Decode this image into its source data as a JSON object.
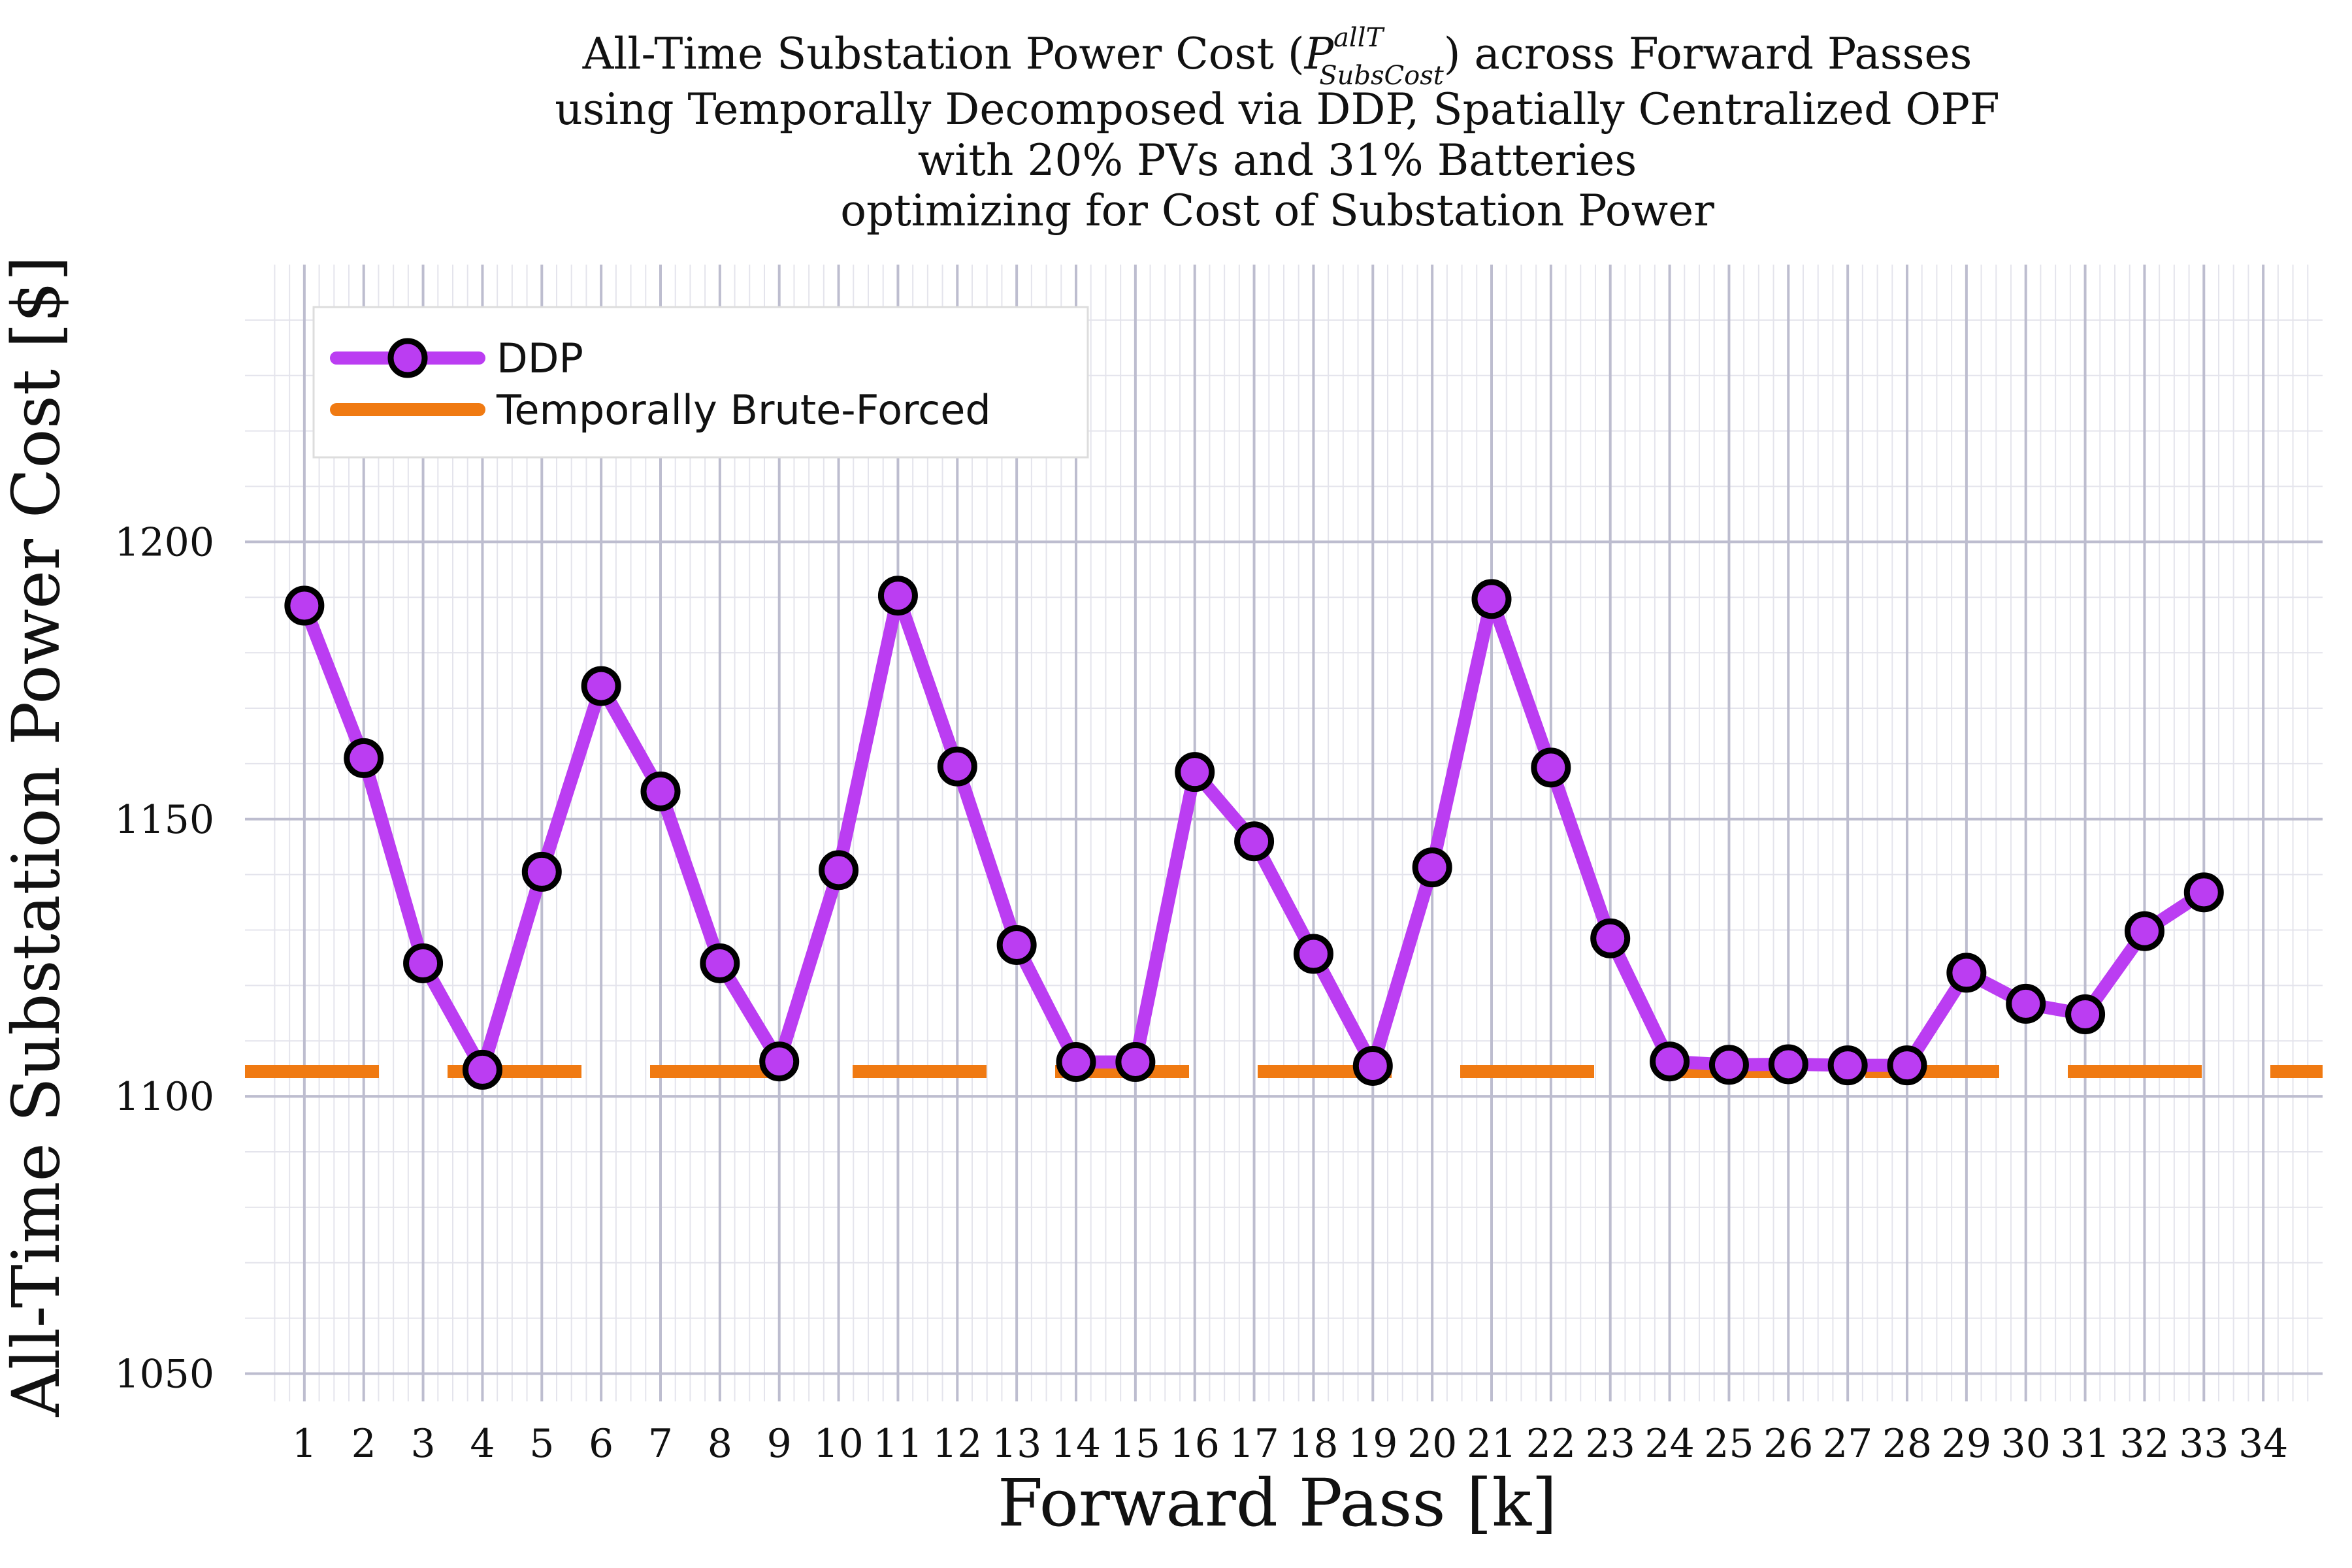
{
  "chart_data": {
    "type": "line",
    "title": {
      "line1_prefix": "All-Time Substation Power Cost (",
      "line1_sym": "P",
      "line1_sup": "allT",
      "line1_sub": "SubsCost",
      "line1_suffix": ") across Forward Passes",
      "line2": "using Temporally Decomposed via DDP, Spatially Centralized OPF",
      "line3": "with 20% PVs and 31% Batteries",
      "line4": "optimizing for Cost of Substation Power"
    },
    "xlabel": "Forward Pass [k]",
    "ylabel": "All-Time Substation Power Cost [$]",
    "xlim": [
      0,
      35
    ],
    "ylim": [
      1045,
      1250
    ],
    "x_ticks": [
      1,
      2,
      3,
      4,
      5,
      6,
      7,
      8,
      9,
      10,
      11,
      12,
      13,
      14,
      15,
      16,
      17,
      18,
      19,
      20,
      21,
      22,
      23,
      24,
      25,
      26,
      27,
      28,
      29,
      30,
      31,
      32,
      33,
      34
    ],
    "y_ticks": [
      1050,
      1100,
      1150,
      1200
    ],
    "grid": true,
    "legend_position": "top-left",
    "series": [
      {
        "name": "DDP",
        "style": "line-with-markers",
        "color": "#BB3DF2",
        "marker_edge_color": "#000000",
        "x": [
          1,
          2,
          3,
          4,
          5,
          6,
          7,
          8,
          9,
          10,
          11,
          12,
          13,
          14,
          15,
          16,
          17,
          18,
          19,
          20,
          21,
          22,
          23,
          24,
          25,
          26,
          27,
          28,
          29,
          30,
          31,
          32,
          33
        ],
        "values": [
          1188.5,
          1161,
          1124,
          1104.8,
          1140.5,
          1174,
          1155,
          1124,
          1106.3,
          1140.8,
          1190.3,
          1159.5,
          1127.3,
          1106.2,
          1106.2,
          1158.5,
          1146,
          1125.7,
          1105.5,
          1141.3,
          1189.7,
          1159.3,
          1128.5,
          1106.3,
          1105.7,
          1105.8,
          1105.6,
          1105.6,
          1122.3,
          1116.7,
          1114.8,
          1129.8,
          1136.8
        ]
      },
      {
        "name": "Temporally Brute-Forced",
        "style": "dashed-constant",
        "color": "#F07A12",
        "value": 1104.5
      }
    ]
  }
}
